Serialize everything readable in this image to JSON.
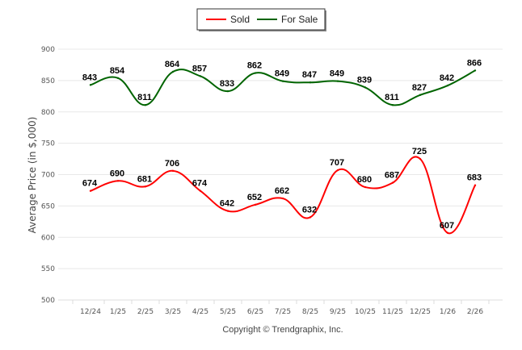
{
  "chart_data": {
    "type": "line",
    "title": "",
    "xlabel": "",
    "ylabel": "Average Price (in $,000)",
    "ylim": [
      500,
      900
    ],
    "yticks": [
      500,
      550,
      600,
      650,
      700,
      750,
      800,
      850,
      900
    ],
    "grid": true,
    "legend_position": "top-center",
    "categories": [
      "12/24",
      "1/25",
      "2/25",
      "3/25",
      "4/25",
      "5/25",
      "6/25",
      "7/25",
      "8/25",
      "9/25",
      "10/25",
      "11/25",
      "12/25",
      "1/26",
      "2/26"
    ],
    "series": [
      {
        "name": "Sold",
        "color": "#ff0000",
        "values": [
          674,
          690,
          681,
          706,
          674,
          642,
          652,
          662,
          632,
          707,
          680,
          687,
          725,
          607,
          683
        ]
      },
      {
        "name": "For Sale",
        "color": "#006400",
        "values": [
          843,
          854,
          811,
          864,
          857,
          833,
          862,
          849,
          847,
          849,
          839,
          811,
          827,
          842,
          866
        ]
      }
    ],
    "footer": "Copyright © Trendgraphix, Inc."
  }
}
